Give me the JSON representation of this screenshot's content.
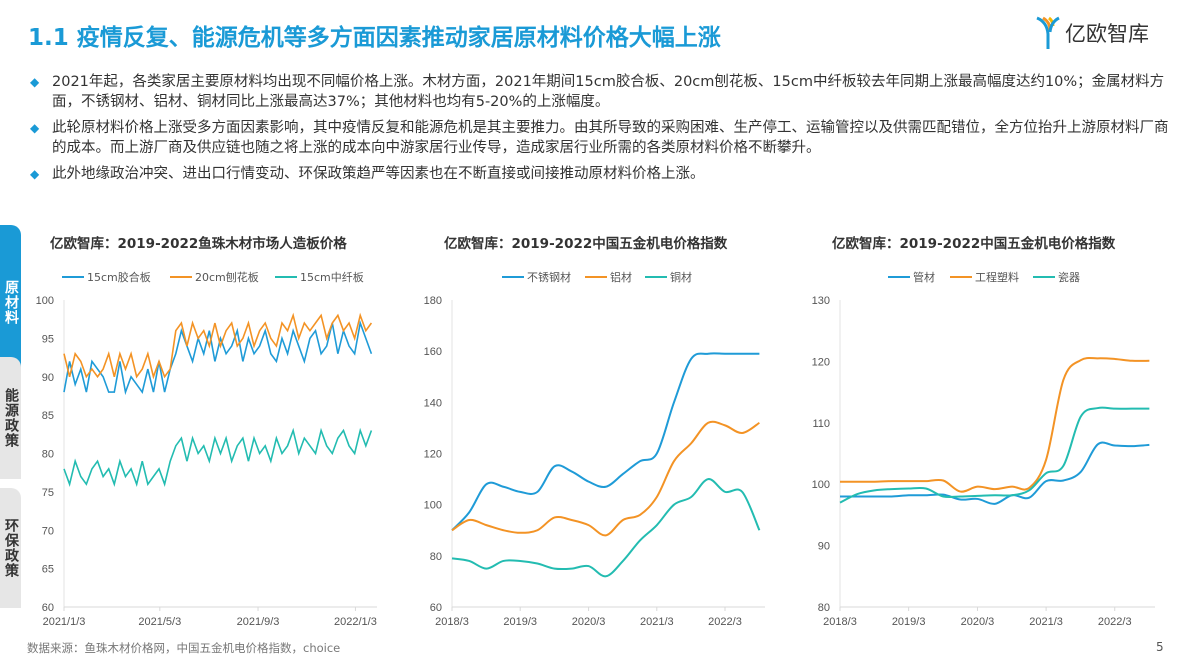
{
  "header": {
    "title": "1.1 疫情反复、能源危机等多方面因素推动家居原材料价格大幅上涨",
    "logo_text": "亿欧智库"
  },
  "bullets": [
    "2021年起，各类家居主要原材料均出现不同幅价格上涨。木材方面，2021年期间15cm胶合板、20cm刨花板、15cm中纤板较去年同期上涨最高幅度达约10%；金属材料方面，不锈钢材、铝材、铜材同比上涨最高达37%；其他材料也均有5-20%的上涨幅度。",
    "此轮原材料价格上涨受多方面因素影响，其中疫情反复和能源危机是其主要推力。由其所导致的采购困难、生产停工、运输管控以及供需匹配错位，全方位抬升上游原材料厂商的成本。而上游厂商及供应链也随之将上涨的成本向中游家居行业传导，造成家居行业所需的各类原材料价格不断攀升。",
    "此外地缘政治冲突、进出口行情变动、环保政策趋严等因素也在不断直接或间接推动原材料价格上涨。"
  ],
  "side_tabs": [
    {
      "label": "原材料",
      "active": true
    },
    {
      "label": "能源政策",
      "active": false
    },
    {
      "label": "环保政策",
      "active": false
    }
  ],
  "colors": {
    "accent": "#1a9ad6",
    "blue": "#1f9bd7",
    "orange": "#f39325",
    "teal": "#23bcb1"
  },
  "chart_data": [
    {
      "type": "line",
      "title": "亿欧智库：2019-2022鱼珠木材市场人造板价格",
      "ylim": [
        60,
        100
      ],
      "yticks": [
        60,
        65,
        70,
        75,
        80,
        85,
        90,
        95,
        100
      ],
      "xticks": [
        "2021/1/3",
        "2021/5/3",
        "2021/9/3",
        "2022/1/3"
      ],
      "legend": "top",
      "x": [
        "2021/1/3",
        "2021/1/10",
        "2021/1/17",
        "2021/1/24",
        "2021/1/31",
        "2021/2/7",
        "2021/2/14",
        "2021/2/21",
        "2021/2/28",
        "2021/3/7",
        "2021/3/14",
        "2021/3/21",
        "2021/3/28",
        "2021/4/4",
        "2021/4/11",
        "2021/4/18",
        "2021/4/25",
        "2021/5/2",
        "2021/5/9",
        "2021/5/16",
        "2021/5/23",
        "2021/5/30",
        "2021/6/6",
        "2021/6/13",
        "2021/6/20",
        "2021/6/27",
        "2021/7/4",
        "2021/7/11",
        "2021/7/18",
        "2021/7/25",
        "2021/8/1",
        "2021/8/8",
        "2021/8/15",
        "2021/8/22",
        "2021/8/29",
        "2021/9/5",
        "2021/9/12",
        "2021/9/19",
        "2021/9/26",
        "2021/10/3",
        "2021/10/10",
        "2021/10/17",
        "2021/10/24",
        "2021/10/31",
        "2021/11/7",
        "2021/11/14",
        "2021/11/21",
        "2021/11/28",
        "2021/12/5",
        "2021/12/12",
        "2021/12/19",
        "2021/12/26",
        "2022/1/2",
        "2022/1/9",
        "2022/1/16",
        "2022/1/23"
      ],
      "series": [
        {
          "name": "15cm胶合板",
          "color": "#1f9bd7",
          "values": [
            88,
            92,
            89,
            91,
            88,
            92,
            91,
            90,
            88,
            88,
            92,
            88,
            90,
            89,
            88,
            91,
            88,
            92,
            88,
            91,
            93,
            96,
            94,
            92,
            95,
            93,
            96,
            92,
            95,
            93,
            94,
            96,
            92,
            95,
            93,
            94,
            96,
            93,
            92,
            95,
            93,
            96,
            94,
            92,
            95,
            96,
            93,
            94,
            97,
            93,
            96,
            94,
            93,
            97,
            95,
            93
          ]
        },
        {
          "name": "20cm刨花板",
          "color": "#f39325",
          "values": [
            93,
            90,
            93,
            92,
            90,
            91,
            90,
            91,
            93,
            90,
            93,
            91,
            93,
            90,
            91,
            93,
            90,
            92,
            90,
            91,
            96,
            97,
            94,
            97,
            95,
            96,
            94,
            97,
            94,
            96,
            97,
            94,
            95,
            97,
            94,
            96,
            97,
            95,
            94,
            97,
            96,
            98,
            95,
            97,
            96,
            97,
            98,
            95,
            97,
            98,
            96,
            97,
            95,
            98,
            96,
            97
          ]
        },
        {
          "name": "15cm中纤板",
          "color": "#23bcb1",
          "values": [
            78,
            76,
            79,
            77,
            76,
            78,
            79,
            77,
            78,
            76,
            79,
            77,
            78,
            76,
            79,
            76,
            77,
            78,
            76,
            79,
            81,
            82,
            79,
            82,
            80,
            81,
            79,
            82,
            80,
            82,
            79,
            81,
            82,
            79,
            82,
            80,
            81,
            79,
            82,
            80,
            81,
            83,
            80,
            82,
            81,
            80,
            83,
            81,
            80,
            82,
            83,
            81,
            80,
            83,
            81,
            83
          ]
        }
      ]
    },
    {
      "type": "line",
      "title": "亿欧智库：2019-2022中国五金机电价格指数",
      "ylim": [
        60,
        180
      ],
      "yticks": [
        60,
        80,
        100,
        120,
        140,
        160,
        180
      ],
      "xticks": [
        "2018/3",
        "2019/3",
        "2020/3",
        "2021/3",
        "2022/3"
      ],
      "legend": "top",
      "x": [
        "2018/3",
        "2018/6",
        "2018/9",
        "2018/12",
        "2019/3",
        "2019/6",
        "2019/9",
        "2019/12",
        "2020/3",
        "2020/6",
        "2020/9",
        "2020/12",
        "2021/3",
        "2021/6",
        "2021/9",
        "2021/12",
        "2022/3",
        "2022/6",
        "2022/9"
      ],
      "series": [
        {
          "name": "不锈钢材",
          "color": "#1f9bd7",
          "values": [
            90,
            97,
            108,
            107,
            105,
            105,
            115,
            113,
            109,
            107,
            112,
            117,
            120,
            140,
            157,
            159,
            159,
            159,
            159
          ]
        },
        {
          "name": "铝材",
          "color": "#f39325",
          "values": [
            90,
            94,
            92,
            90,
            89,
            90,
            95,
            94,
            92,
            88,
            94,
            96,
            103,
            117,
            124,
            132,
            131,
            128,
            132
          ]
        },
        {
          "name": "铜材",
          "color": "#23bcb1",
          "values": [
            79,
            78,
            75,
            78,
            78,
            77,
            75,
            75,
            76,
            72,
            78,
            86,
            92,
            100,
            103,
            110,
            105,
            105,
            90
          ]
        }
      ]
    },
    {
      "type": "line",
      "title": "亿欧智库：2019-2022中国五金机电价格指数",
      "ylim": [
        80,
        130
      ],
      "yticks": [
        80,
        90,
        100,
        110,
        120,
        130
      ],
      "xticks": [
        "2018/3",
        "2019/3",
        "2020/3",
        "2021/3",
        "2022/3"
      ],
      "legend": "top",
      "x": [
        "2018/3",
        "2018/6",
        "2018/9",
        "2018/12",
        "2019/3",
        "2019/6",
        "2019/9",
        "2019/12",
        "2020/3",
        "2020/6",
        "2020/9",
        "2020/12",
        "2021/3",
        "2021/6",
        "2021/9",
        "2021/12",
        "2022/3",
        "2022/6",
        "2022/9"
      ],
      "series": [
        {
          "name": "管材",
          "color": "#1f9bd7",
          "values": [
            98,
            98,
            98,
            98,
            98.2,
            98.2,
            98.3,
            97.5,
            97.6,
            96.8,
            98.2,
            97.8,
            100.5,
            100.6,
            102,
            106.5,
            106.3,
            106.2,
            106.4
          ]
        },
        {
          "name": "工程塑料",
          "color": "#f39325",
          "values": [
            100.4,
            100.4,
            100.4,
            100.5,
            100.5,
            100.5,
            100.6,
            98.8,
            99.6,
            99.2,
            99.6,
            99.4,
            104,
            117,
            120.2,
            120.5,
            120.4,
            120.1,
            120.1
          ]
        },
        {
          "name": "瓷器",
          "color": "#23bcb1",
          "values": [
            97,
            98.4,
            99,
            99.2,
            99.3,
            99.3,
            98,
            98,
            98.1,
            98.2,
            98.2,
            99,
            101.8,
            103,
            111,
            112.4,
            112.3,
            112.3,
            112.3
          ]
        }
      ]
    }
  ],
  "footer": {
    "source": "数据来源：鱼珠木材价格网，中国五金机电价格指数，choice",
    "page_number": "5"
  }
}
